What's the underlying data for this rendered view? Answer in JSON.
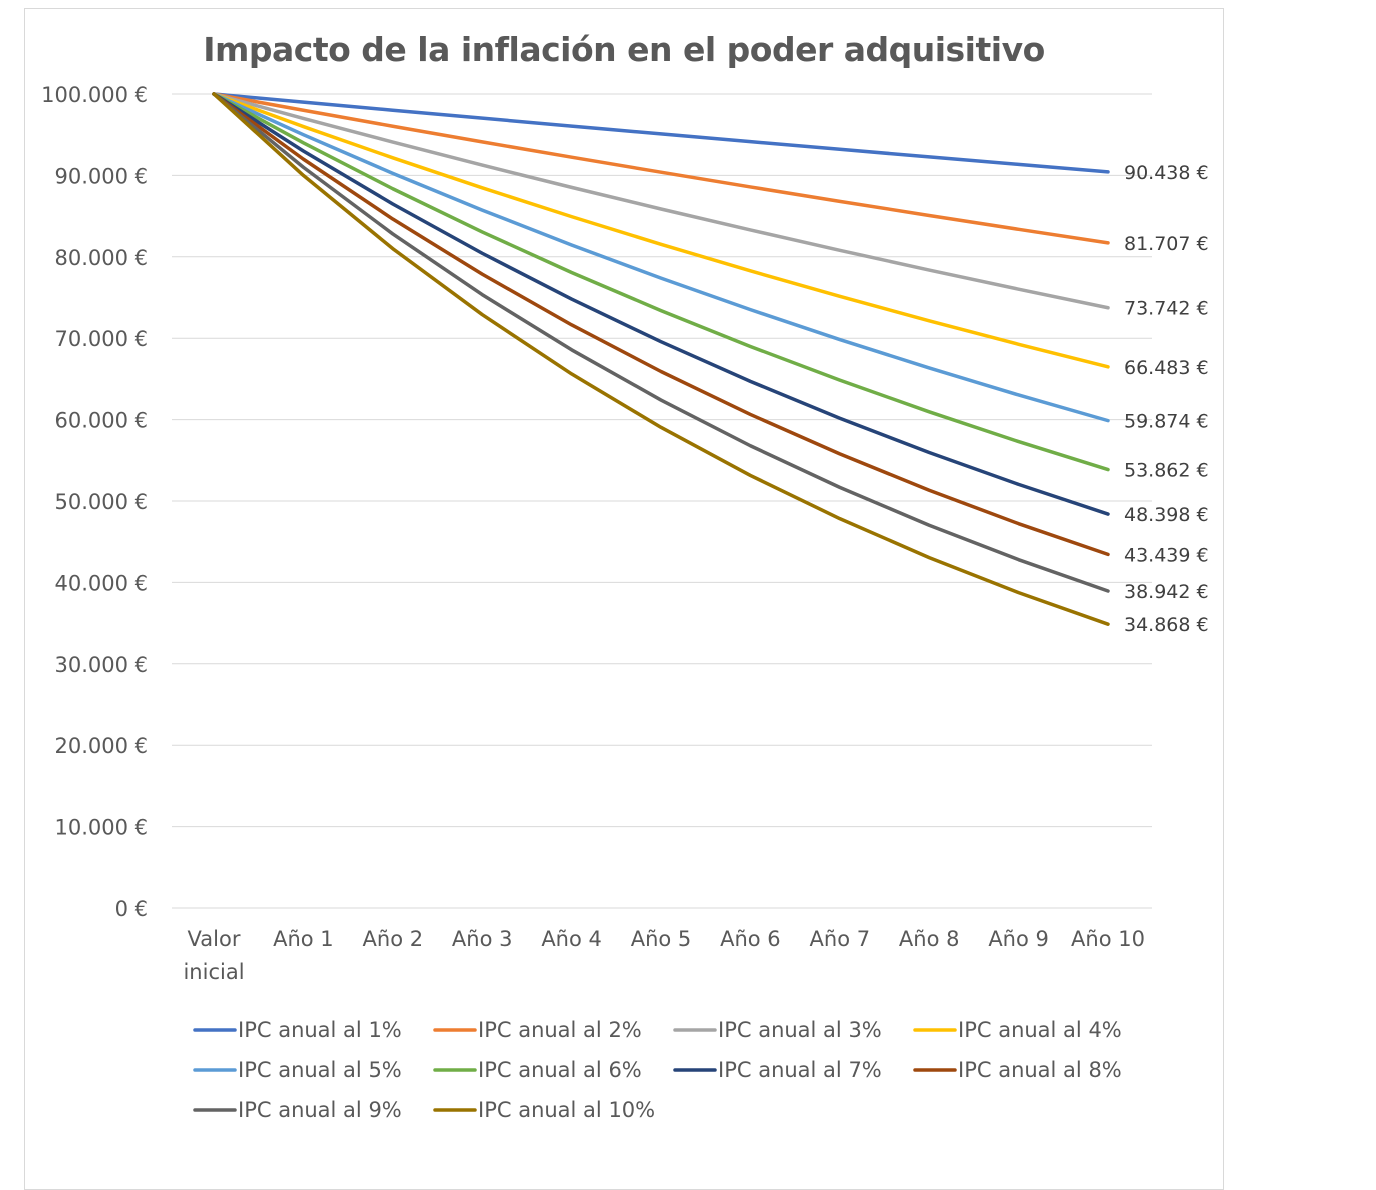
{
  "chart_data": {
    "type": "line",
    "title": "Impacto de la inflación en el poder adquisitivo",
    "xlabel": "",
    "ylabel": "",
    "categories": [
      "Valor inicial",
      "Año 1",
      "Año 2",
      "Año 3",
      "Año 4",
      "Año 5",
      "Año 6",
      "Año 7",
      "Año 8",
      "Año 9",
      "Año 10"
    ],
    "ylim": [
      0,
      100000
    ],
    "yticks": [
      0,
      10000,
      20000,
      30000,
      40000,
      50000,
      60000,
      70000,
      80000,
      90000,
      100000
    ],
    "ytick_labels": [
      "0 €",
      "10.000 €",
      "20.000 €",
      "30.000 €",
      "40.000 €",
      "50.000 €",
      "60.000 €",
      "70.000 €",
      "80.000 €",
      "90.000 €",
      "100.000 €"
    ],
    "grid": true,
    "legend_position": "bottom",
    "series": [
      {
        "name": "IPC anual al 1%",
        "color": "#4472c4",
        "values": [
          100000,
          99000,
          98010,
          97030,
          96060,
          95099,
          94148,
          93207,
          92274,
          91352,
          90438
        ],
        "end_label": "90.438 €"
      },
      {
        "name": "IPC anual al 2%",
        "color": "#ed7d31",
        "values": [
          100000,
          98000,
          96040,
          94119,
          92237,
          90392,
          88584,
          86813,
          85076,
          83375,
          81707
        ],
        "end_label": "81.707 €"
      },
      {
        "name": "IPC anual al 3%",
        "color": "#a5a5a5",
        "values": [
          100000,
          97000,
          94090,
          91267,
          88529,
          85873,
          83297,
          80798,
          78374,
          76023,
          73742
        ],
        "end_label": "73.742 €"
      },
      {
        "name": "IPC anual al 4%",
        "color": "#ffc000",
        "values": [
          100000,
          96000,
          92160,
          88474,
          84935,
          81537,
          78276,
          75145,
          72139,
          69253,
          66483
        ],
        "end_label": "66.483 €"
      },
      {
        "name": "IPC anual al 5%",
        "color": "#5b9bd5",
        "values": [
          100000,
          95000,
          90250,
          85738,
          81451,
          77378,
          73509,
          69834,
          66342,
          63025,
          59874
        ],
        "end_label": "59.874 €"
      },
      {
        "name": "IPC anual al 6%",
        "color": "#70ad47",
        "values": [
          100000,
          94000,
          88360,
          83058,
          78075,
          73390,
          68987,
          64848,
          60957,
          57299,
          53862
        ],
        "end_label": "53.862 €"
      },
      {
        "name": "IPC anual al 7%",
        "color": "#264478",
        "values": [
          100000,
          93000,
          86490,
          80436,
          74805,
          69569,
          64699,
          60170,
          55958,
          52041,
          48398
        ],
        "end_label": "48.398 €"
      },
      {
        "name": "IPC anual al 8%",
        "color": "#9e480e",
        "values": [
          100000,
          92000,
          84640,
          77869,
          71639,
          65908,
          60636,
          55785,
          51322,
          47216,
          43439
        ],
        "end_label": "43.439 €"
      },
      {
        "name": "IPC anual al 9%",
        "color": "#636363",
        "values": [
          100000,
          91000,
          82810,
          75357,
          68575,
          62403,
          56787,
          51676,
          47025,
          42793,
          38942
        ],
        "end_label": "38.942 €"
      },
      {
        "name": "IPC anual al 10%",
        "color": "#997300",
        "values": [
          100000,
          90000,
          81000,
          72900,
          65610,
          59049,
          53144,
          47830,
          43047,
          38742,
          34868
        ],
        "end_label": "34.868 €"
      }
    ]
  }
}
